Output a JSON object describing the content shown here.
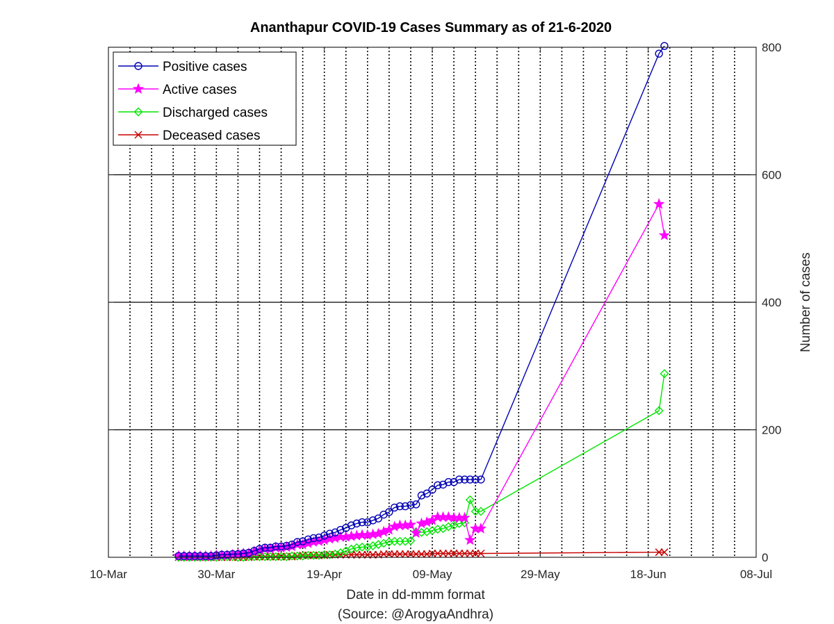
{
  "chart_data": {
    "type": "line",
    "title": "Ananthapur COVID-19 Cases Summary as of 21-6-2020",
    "xlabel": "Date in dd-mmm format",
    "xlabel_sub": "(Source: @ArogyaAndhra)",
    "ylabel": "Number of cases",
    "x_axis": {
      "type": "date",
      "range": [
        "2020-03-10",
        "2020-07-08"
      ],
      "ticks": [
        "2020-03-10",
        "2020-03-30",
        "2020-04-19",
        "2020-05-09",
        "2020-05-29",
        "2020-06-18",
        "2020-07-08"
      ],
      "tick_labels": [
        "10-Mar",
        "30-Mar",
        "19-Apr",
        "09-May",
        "29-May",
        "18-Jun",
        "08-Jul"
      ],
      "grid": "daily-dotted-every-4-days"
    },
    "y_axis": {
      "range": [
        0,
        800
      ],
      "ticks": [
        0,
        200,
        400,
        600,
        800
      ],
      "tick_labels": [
        "0",
        "200",
        "400",
        "600",
        "800"
      ],
      "position": "right",
      "grid": true
    },
    "legend": {
      "placement": "top-left"
    },
    "series": [
      {
        "name": "Positive cases",
        "color": "#0000b4",
        "marker": "circle",
        "points": [
          [
            "2020-03-23",
            2
          ],
          [
            "2020-03-24",
            2
          ],
          [
            "2020-03-25",
            2
          ],
          [
            "2020-03-26",
            2
          ],
          [
            "2020-03-27",
            2
          ],
          [
            "2020-03-28",
            2
          ],
          [
            "2020-03-29",
            2
          ],
          [
            "2020-03-30",
            3
          ],
          [
            "2020-03-31",
            4
          ],
          [
            "2020-04-01",
            4
          ],
          [
            "2020-04-02",
            5
          ],
          [
            "2020-04-03",
            5
          ],
          [
            "2020-04-04",
            6
          ],
          [
            "2020-04-05",
            7
          ],
          [
            "2020-04-06",
            10
          ],
          [
            "2020-04-07",
            13
          ],
          [
            "2020-04-08",
            15
          ],
          [
            "2020-04-09",
            15
          ],
          [
            "2020-04-10",
            17
          ],
          [
            "2020-04-11",
            17
          ],
          [
            "2020-04-12",
            18
          ],
          [
            "2020-04-13",
            20
          ],
          [
            "2020-04-14",
            24
          ],
          [
            "2020-04-15",
            25
          ],
          [
            "2020-04-16",
            28
          ],
          [
            "2020-04-17",
            30
          ],
          [
            "2020-04-18",
            31
          ],
          [
            "2020-04-19",
            34
          ],
          [
            "2020-04-20",
            37
          ],
          [
            "2020-04-21",
            39
          ],
          [
            "2020-04-22",
            43
          ],
          [
            "2020-04-23",
            46
          ],
          [
            "2020-04-24",
            50
          ],
          [
            "2020-04-25",
            53
          ],
          [
            "2020-04-26",
            55
          ],
          [
            "2020-04-27",
            55
          ],
          [
            "2020-04-28",
            58
          ],
          [
            "2020-04-29",
            61
          ],
          [
            "2020-04-30",
            67
          ],
          [
            "2020-05-01",
            71
          ],
          [
            "2020-05-02",
            78
          ],
          [
            "2020-05-03",
            80
          ],
          [
            "2020-05-04",
            80
          ],
          [
            "2020-05-05",
            82
          ],
          [
            "2020-05-06",
            83
          ],
          [
            "2020-05-07",
            97
          ],
          [
            "2020-05-08",
            100
          ],
          [
            "2020-05-09",
            106
          ],
          [
            "2020-05-10",
            113
          ],
          [
            "2020-05-11",
            114
          ],
          [
            "2020-05-12",
            118
          ],
          [
            "2020-05-13",
            118
          ],
          [
            "2020-05-14",
            122
          ],
          [
            "2020-05-15",
            122
          ],
          [
            "2020-05-16",
            122
          ],
          [
            "2020-05-17",
            122
          ],
          [
            "2020-05-18",
            122
          ],
          [
            "2020-06-20",
            790
          ],
          [
            "2020-06-21",
            802
          ]
        ]
      },
      {
        "name": "Active cases",
        "color": "#ff00ff",
        "marker": "star",
        "points": [
          [
            "2020-03-23",
            2
          ],
          [
            "2020-03-24",
            2
          ],
          [
            "2020-03-25",
            2
          ],
          [
            "2020-03-26",
            2
          ],
          [
            "2020-03-27",
            2
          ],
          [
            "2020-03-28",
            2
          ],
          [
            "2020-03-29",
            2
          ],
          [
            "2020-03-30",
            3
          ],
          [
            "2020-03-31",
            3
          ],
          [
            "2020-04-01",
            3
          ],
          [
            "2020-04-02",
            4
          ],
          [
            "2020-04-03",
            5
          ],
          [
            "2020-04-04",
            6
          ],
          [
            "2020-04-05",
            6
          ],
          [
            "2020-04-06",
            9
          ],
          [
            "2020-04-07",
            11
          ],
          [
            "2020-04-08",
            13
          ],
          [
            "2020-04-09",
            13
          ],
          [
            "2020-04-10",
            15
          ],
          [
            "2020-04-11",
            15
          ],
          [
            "2020-04-12",
            16
          ],
          [
            "2020-04-13",
            17
          ],
          [
            "2020-04-14",
            20
          ],
          [
            "2020-04-15",
            20
          ],
          [
            "2020-04-16",
            22
          ],
          [
            "2020-04-17",
            24
          ],
          [
            "2020-04-18",
            25
          ],
          [
            "2020-04-19",
            27
          ],
          [
            "2020-04-20",
            29
          ],
          [
            "2020-04-21",
            30
          ],
          [
            "2020-04-22",
            32
          ],
          [
            "2020-04-23",
            32
          ],
          [
            "2020-04-24",
            33
          ],
          [
            "2020-04-25",
            34
          ],
          [
            "2020-04-26",
            35
          ],
          [
            "2020-04-27",
            35
          ],
          [
            "2020-04-28",
            36
          ],
          [
            "2020-04-29",
            37
          ],
          [
            "2020-04-30",
            40
          ],
          [
            "2020-05-01",
            43
          ],
          [
            "2020-05-02",
            48
          ],
          [
            "2020-05-03",
            50
          ],
          [
            "2020-05-04",
            50
          ],
          [
            "2020-05-05",
            51
          ],
          [
            "2020-05-06",
            38
          ],
          [
            "2020-05-07",
            53
          ],
          [
            "2020-05-08",
            55
          ],
          [
            "2020-05-09",
            58
          ],
          [
            "2020-05-10",
            63
          ],
          [
            "2020-05-11",
            63
          ],
          [
            "2020-05-12",
            63
          ],
          [
            "2020-05-13",
            62
          ],
          [
            "2020-05-14",
            62
          ],
          [
            "2020-05-15",
            62
          ],
          [
            "2020-05-16",
            27
          ],
          [
            "2020-05-17",
            45
          ],
          [
            "2020-05-18",
            45
          ],
          [
            "2020-06-20",
            554
          ],
          [
            "2020-06-21",
            505
          ]
        ]
      },
      {
        "name": "Discharged cases",
        "color": "#00e600",
        "marker": "diamond",
        "points": [
          [
            "2020-03-23",
            0
          ],
          [
            "2020-03-24",
            0
          ],
          [
            "2020-03-25",
            0
          ],
          [
            "2020-03-26",
            0
          ],
          [
            "2020-03-27",
            0
          ],
          [
            "2020-03-28",
            0
          ],
          [
            "2020-03-29",
            0
          ],
          [
            "2020-03-30",
            0
          ],
          [
            "2020-03-31",
            1
          ],
          [
            "2020-04-01",
            1
          ],
          [
            "2020-04-02",
            1
          ],
          [
            "2020-04-03",
            0
          ],
          [
            "2020-04-04",
            0
          ],
          [
            "2020-04-05",
            1
          ],
          [
            "2020-04-06",
            1
          ],
          [
            "2020-04-07",
            1
          ],
          [
            "2020-04-08",
            1
          ],
          [
            "2020-04-09",
            1
          ],
          [
            "2020-04-10",
            1
          ],
          [
            "2020-04-11",
            1
          ],
          [
            "2020-04-12",
            1
          ],
          [
            "2020-04-13",
            2
          ],
          [
            "2020-04-14",
            2
          ],
          [
            "2020-04-15",
            2
          ],
          [
            "2020-04-16",
            3
          ],
          [
            "2020-04-17",
            3
          ],
          [
            "2020-04-18",
            3
          ],
          [
            "2020-04-19",
            4
          ],
          [
            "2020-04-20",
            4
          ],
          [
            "2020-04-21",
            5
          ],
          [
            "2020-04-22",
            7
          ],
          [
            "2020-04-23",
            10
          ],
          [
            "2020-04-24",
            13
          ],
          [
            "2020-04-25",
            15
          ],
          [
            "2020-04-26",
            16
          ],
          [
            "2020-04-27",
            16
          ],
          [
            "2020-04-28",
            18
          ],
          [
            "2020-04-29",
            20
          ],
          [
            "2020-04-30",
            22
          ],
          [
            "2020-05-01",
            24
          ],
          [
            "2020-05-02",
            25
          ],
          [
            "2020-05-03",
            25
          ],
          [
            "2020-05-04",
            25
          ],
          [
            "2020-05-05",
            26
          ],
          [
            "2020-05-06",
            40
          ],
          [
            "2020-05-07",
            39
          ],
          [
            "2020-05-08",
            40
          ],
          [
            "2020-05-09",
            42
          ],
          [
            "2020-05-10",
            44
          ],
          [
            "2020-05-11",
            45
          ],
          [
            "2020-05-12",
            48
          ],
          [
            "2020-05-13",
            50
          ],
          [
            "2020-05-14",
            53
          ],
          [
            "2020-05-15",
            54
          ],
          [
            "2020-05-16",
            90
          ],
          [
            "2020-05-17",
            72
          ],
          [
            "2020-05-18",
            72
          ],
          [
            "2020-06-20",
            230
          ],
          [
            "2020-06-21",
            288
          ]
        ]
      },
      {
        "name": "Deceased cases",
        "color": "#c80000",
        "marker": "x",
        "points": [
          [
            "2020-03-23",
            0
          ],
          [
            "2020-03-24",
            0
          ],
          [
            "2020-03-25",
            0
          ],
          [
            "2020-03-26",
            0
          ],
          [
            "2020-03-27",
            0
          ],
          [
            "2020-03-28",
            0
          ],
          [
            "2020-03-29",
            0
          ],
          [
            "2020-03-30",
            0
          ],
          [
            "2020-03-31",
            0
          ],
          [
            "2020-04-01",
            0
          ],
          [
            "2020-04-02",
            0
          ],
          [
            "2020-04-03",
            0
          ],
          [
            "2020-04-04",
            0
          ],
          [
            "2020-04-05",
            0
          ],
          [
            "2020-04-06",
            1
          ],
          [
            "2020-04-07",
            1
          ],
          [
            "2020-04-08",
            1
          ],
          [
            "2020-04-09",
            1
          ],
          [
            "2020-04-10",
            1
          ],
          [
            "2020-04-11",
            1
          ],
          [
            "2020-04-12",
            1
          ],
          [
            "2020-04-13",
            1
          ],
          [
            "2020-04-14",
            2
          ],
          [
            "2020-04-15",
            3
          ],
          [
            "2020-04-16",
            3
          ],
          [
            "2020-04-17",
            3
          ],
          [
            "2020-04-18",
            3
          ],
          [
            "2020-04-19",
            3
          ],
          [
            "2020-04-20",
            4
          ],
          [
            "2020-04-21",
            4
          ],
          [
            "2020-04-22",
            4
          ],
          [
            "2020-04-23",
            4
          ],
          [
            "2020-04-24",
            4
          ],
          [
            "2020-04-25",
            4
          ],
          [
            "2020-04-26",
            4
          ],
          [
            "2020-04-27",
            4
          ],
          [
            "2020-04-28",
            4
          ],
          [
            "2020-04-29",
            4
          ],
          [
            "2020-04-30",
            5
          ],
          [
            "2020-05-01",
            5
          ],
          [
            "2020-05-02",
            5
          ],
          [
            "2020-05-03",
            5
          ],
          [
            "2020-05-04",
            5
          ],
          [
            "2020-05-05",
            5
          ],
          [
            "2020-05-06",
            5
          ],
          [
            "2020-05-07",
            5
          ],
          [
            "2020-05-08",
            5
          ],
          [
            "2020-05-09",
            6
          ],
          [
            "2020-05-10",
            6
          ],
          [
            "2020-05-11",
            6
          ],
          [
            "2020-05-12",
            6
          ],
          [
            "2020-05-13",
            6
          ],
          [
            "2020-05-14",
            6
          ],
          [
            "2020-05-15",
            6
          ],
          [
            "2020-05-16",
            6
          ],
          [
            "2020-05-17",
            6
          ],
          [
            "2020-05-18",
            6
          ],
          [
            "2020-06-20",
            8
          ],
          [
            "2020-06-21",
            8
          ]
        ]
      }
    ]
  }
}
